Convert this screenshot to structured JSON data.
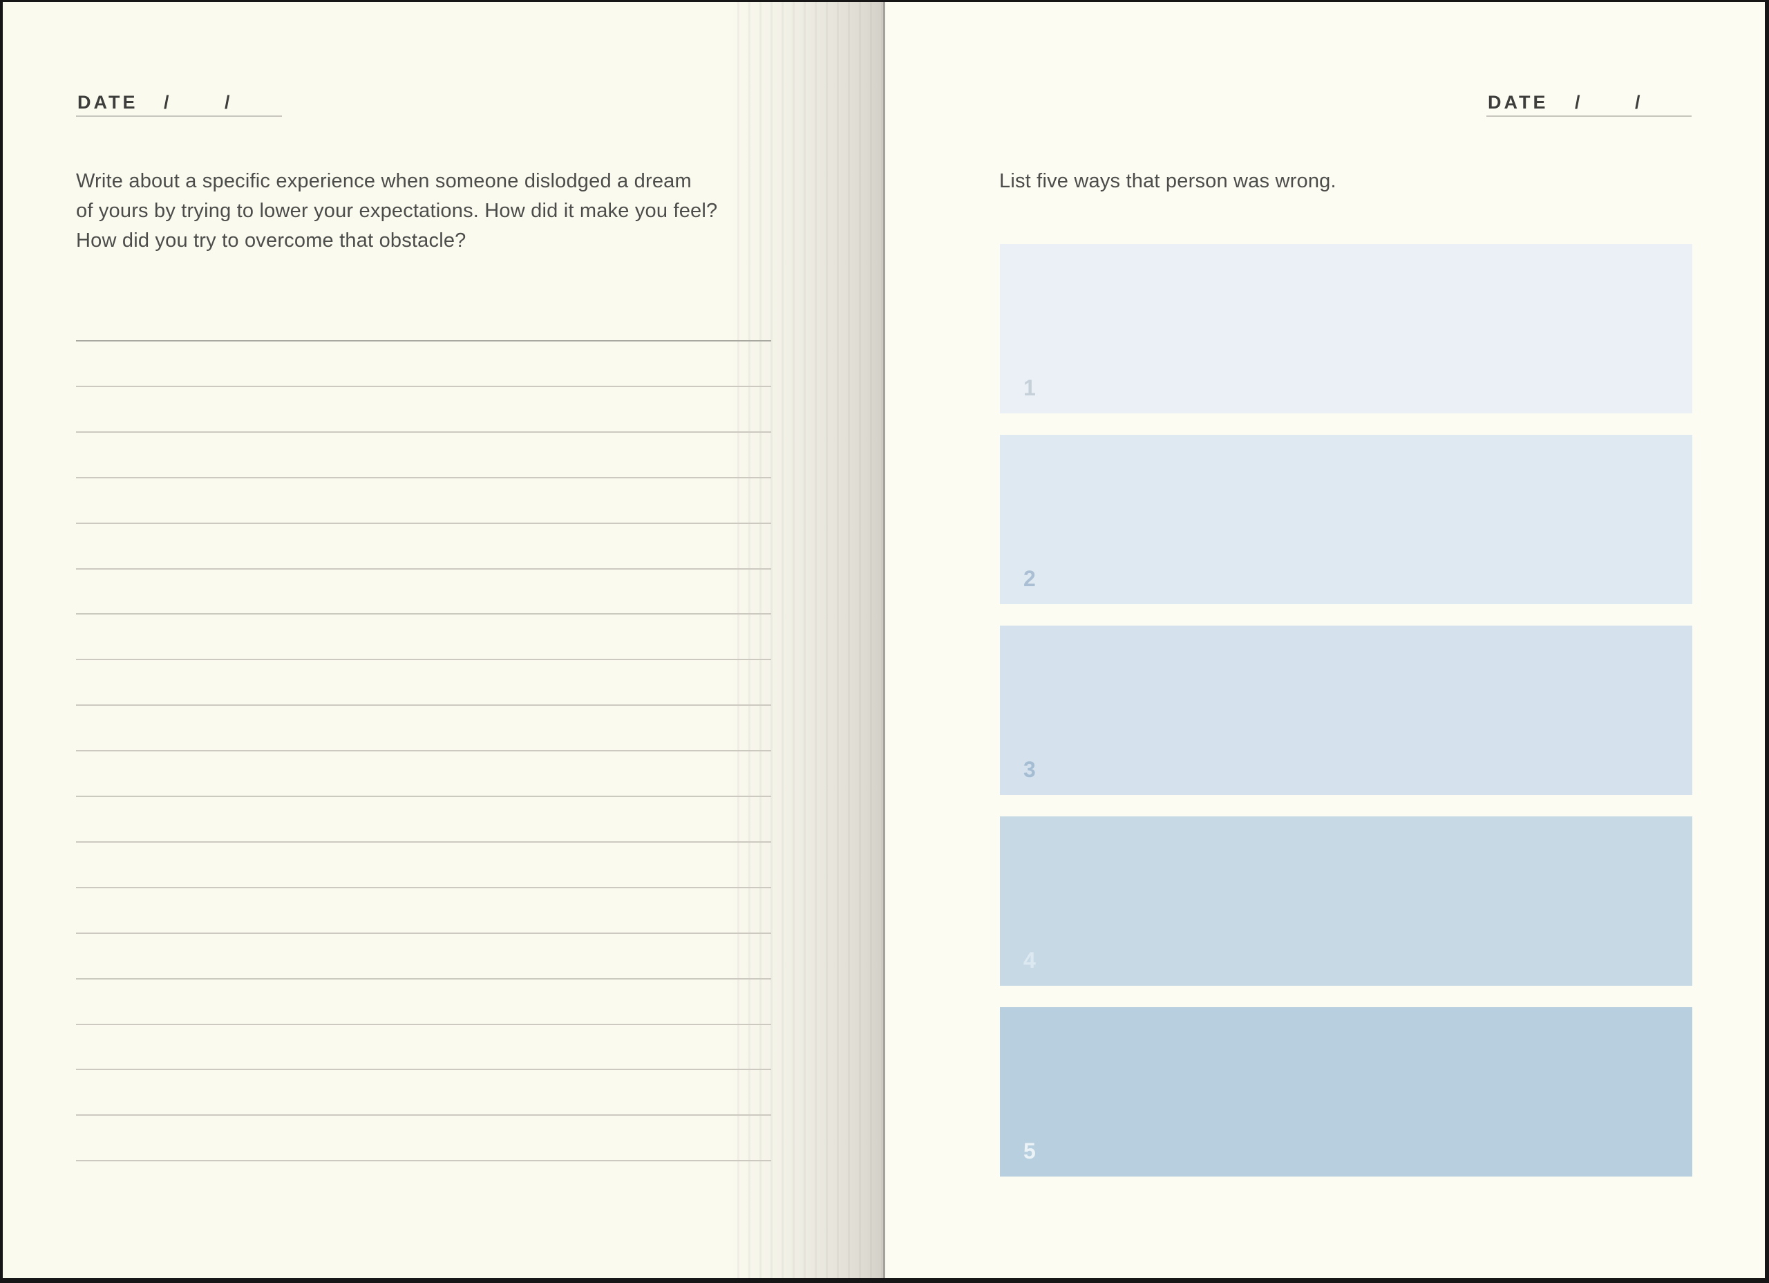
{
  "colors": {
    "frame": "#161616",
    "left_page_bg": "#fbfaef",
    "right_page_bg": "#fdfcf3",
    "date_text": "#3d3d3b",
    "prompt_text": "#4c4c4a",
    "ruled_line": "#ccc9c1",
    "ruled_line_first": "#a8a7a0",
    "spine_line": "#a4a19c"
  },
  "left_page": {
    "date_label": "DATE",
    "date_slash_1": "/",
    "date_slash_2": "/",
    "prompt_lines": [
      "Write about a specific experience when someone dislodged a dream",
      "of yours by trying to lower your expectations. How did it make you feel?",
      "How did you try to overcome that obstacle?"
    ],
    "prompt_full": "Write about a specific experience when someone dislodged a dream of yours by trying to lower your expectations. How did it make you feel? How did you try to overcome that obstacle?",
    "ruled_line_count": 19
  },
  "right_page": {
    "date_label": "DATE",
    "date_slash_1": "/",
    "date_slash_2": "/",
    "prompt": "List five ways that person was wrong.",
    "list_boxes": [
      {
        "number": "1",
        "bg": "#eaf0f5",
        "number_color": "#c6d0d9"
      },
      {
        "number": "2",
        "bg": "#dfe9f1",
        "number_color": "#aabfd3"
      },
      {
        "number": "3",
        "bg": "#d5e2ed",
        "number_color": "#a5bdd3"
      },
      {
        "number": "4",
        "bg": "#c8d9e6",
        "number_color": "#dde9f1"
      },
      {
        "number": "5",
        "bg": "#b7cfdf",
        "number_color": "#ecf3f7"
      }
    ]
  }
}
